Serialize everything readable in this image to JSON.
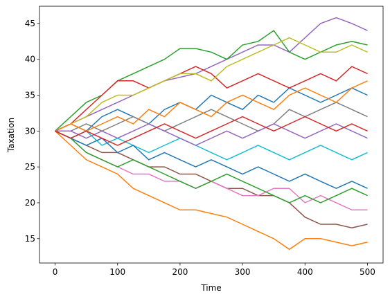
{
  "chart_data": {
    "type": "line",
    "x_label": "Time",
    "y_label": "Taxation",
    "x": [
      0,
      25,
      50,
      75,
      100,
      125,
      150,
      175,
      200,
      225,
      250,
      275,
      300,
      325,
      350,
      375,
      400,
      425,
      450,
      475,
      500
    ],
    "xlim": [
      -25,
      525
    ],
    "xticks": [
      0,
      100,
      200,
      300,
      400,
      500
    ],
    "ylim": [
      11.6,
      47.4
    ],
    "yticks": [
      15,
      20,
      25,
      30,
      35,
      40,
      45
    ],
    "series": [
      {
        "color": "#9467bd",
        "values": [
          30,
          31,
          32,
          33,
          34,
          35,
          36,
          37,
          37.5,
          38,
          39,
          40,
          41,
          42,
          42,
          41,
          43,
          45,
          45.8,
          45,
          44
        ]
      },
      {
        "color": "#ff7f0e",
        "values": [
          30,
          28,
          26,
          25,
          24,
          22,
          21,
          20,
          19,
          19,
          18.5,
          18,
          17,
          16,
          15,
          13.5,
          15,
          15,
          14.5,
          14,
          14.5
        ]
      },
      {
        "color": "#2ca02c",
        "values": [
          30,
          32,
          34,
          35,
          37,
          38,
          39,
          40,
          41.5,
          41.5,
          41,
          40,
          42,
          42.5,
          44,
          41,
          40,
          41,
          42,
          42.5,
          42
        ]
      },
      {
        "color": "#8c564b",
        "values": [
          30,
          29,
          28,
          27,
          27,
          26,
          25,
          25,
          24,
          24,
          23,
          22,
          22,
          21,
          21,
          20,
          18,
          17,
          17,
          16.5,
          17
        ]
      },
      {
        "color": "#1f77b4",
        "values": [
          30,
          31,
          30,
          32,
          33,
          32,
          31,
          33,
          34,
          33,
          35,
          34,
          33,
          35,
          34,
          36,
          35,
          34,
          35,
          36,
          35
        ]
      },
      {
        "color": "#d62728",
        "values": [
          30,
          31,
          33,
          35,
          37,
          37,
          36,
          37,
          38,
          39,
          38,
          36,
          37,
          38,
          37,
          36,
          37,
          38,
          37,
          39,
          38
        ]
      },
      {
        "color": "#e377c2",
        "values": [
          30,
          29,
          27,
          26,
          25,
          24,
          24,
          23,
          23,
          22,
          23,
          22,
          21,
          21,
          22,
          22,
          20,
          21,
          20,
          19,
          19
        ]
      },
      {
        "color": "#7f7f7f",
        "values": [
          30,
          30,
          31,
          30,
          31,
          32,
          31,
          30,
          31,
          32,
          33,
          32,
          31,
          30,
          31,
          33,
          32,
          33,
          34,
          33,
          32
        ]
      },
      {
        "color": "#bcbd22",
        "values": [
          30,
          31,
          32,
          34,
          35,
          35,
          36,
          37,
          38,
          38,
          37,
          39,
          40,
          41,
          42,
          43,
          42,
          41,
          41,
          42,
          41
        ]
      },
      {
        "color": "#17becf",
        "values": [
          30,
          29,
          30,
          28,
          29,
          28,
          27,
          28,
          29,
          28,
          27,
          26,
          27,
          28,
          27,
          26,
          27,
          28,
          27,
          26,
          27
        ]
      },
      {
        "color": "#1f77b4",
        "values": [
          30,
          29,
          28,
          29,
          27,
          28,
          26,
          27,
          26,
          25,
          26,
          25,
          24,
          25,
          24,
          23,
          24,
          23,
          22,
          23,
          22
        ]
      },
      {
        "color": "#2ca02c",
        "values": [
          30,
          29,
          27,
          26,
          25,
          26,
          25,
          24,
          23,
          22,
          23,
          24,
          23,
          22,
          21,
          20,
          21,
          20,
          21,
          22,
          21
        ]
      },
      {
        "color": "#ff7f0e",
        "values": [
          30,
          31,
          30,
          31,
          32,
          31,
          33,
          32,
          34,
          33,
          32,
          34,
          35,
          34,
          33,
          35,
          36,
          35,
          34,
          36,
          37
        ]
      },
      {
        "color": "#9467bd",
        "values": [
          30,
          30,
          29,
          30,
          29,
          30,
          31,
          30,
          29,
          28,
          29,
          30,
          29,
          30,
          31,
          30,
          29,
          30,
          31,
          30,
          29
        ]
      },
      {
        "color": "#d62728",
        "values": [
          30,
          29,
          30,
          29,
          28,
          29,
          30,
          31,
          30,
          29,
          30,
          31,
          32,
          31,
          30,
          31,
          32,
          31,
          30,
          31,
          30
        ]
      }
    ]
  }
}
